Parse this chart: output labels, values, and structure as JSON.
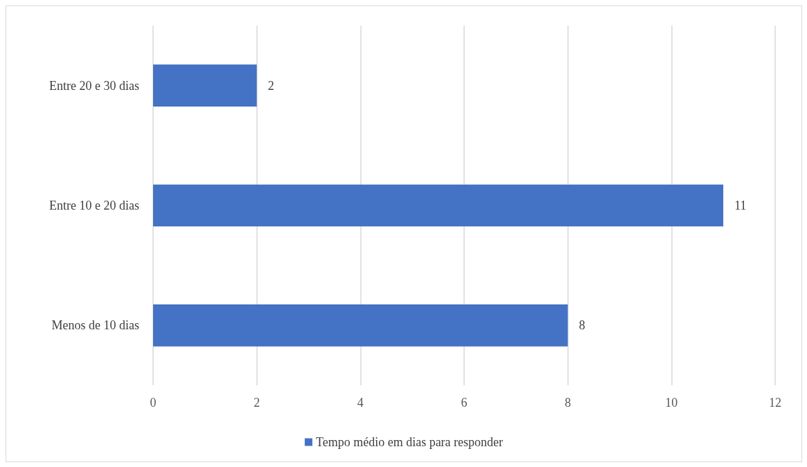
{
  "chart_data": {
    "type": "bar",
    "orientation": "horizontal",
    "categories": [
      "Entre 20 e 30 dias",
      "Entre 10 e 20 dias",
      "Menos de 10 dias"
    ],
    "series": [
      {
        "name": "Tempo médio em dias para responder",
        "color": "#4472c4",
        "values": [
          2,
          11,
          8
        ]
      }
    ],
    "xlim": [
      0,
      12
    ],
    "xticks": [
      0,
      2,
      4,
      6,
      8,
      10,
      12
    ],
    "grid": "x",
    "legend": "bottom",
    "data_labels": true
  }
}
